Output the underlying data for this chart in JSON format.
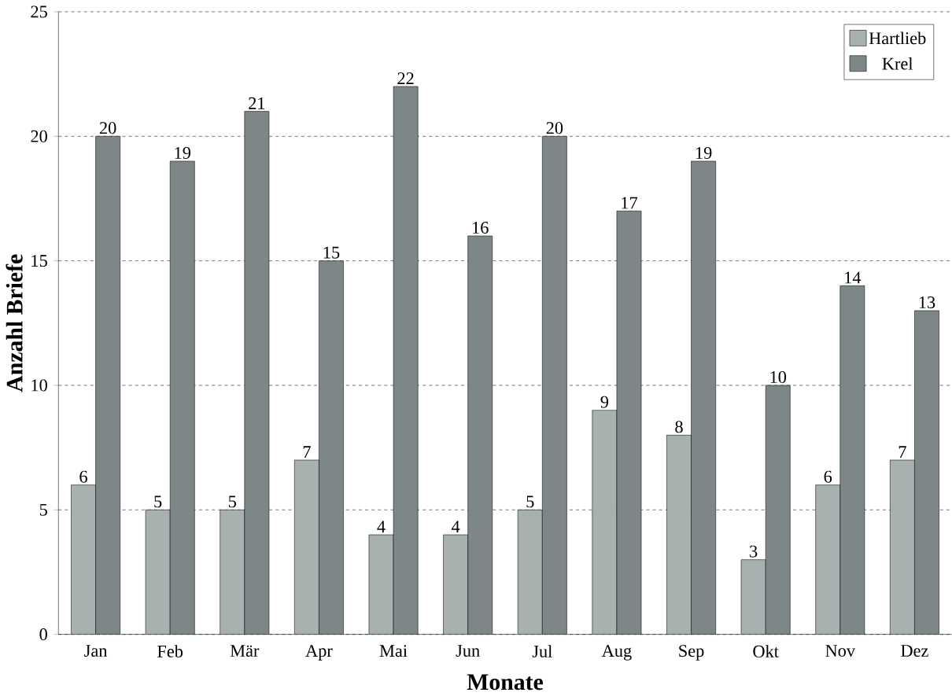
{
  "chart_data": {
    "type": "bar",
    "xlabel": "Monate",
    "ylabel": "Anzahl Briefe",
    "categories": [
      "Jan",
      "Feb",
      "Mär",
      "Apr",
      "Mai",
      "Jun",
      "Jul",
      "Aug",
      "Sep",
      "Okt",
      "Nov",
      "Dez"
    ],
    "series": [
      {
        "name": "Hartlieb",
        "color": "#a8b0b0",
        "values": [
          6,
          5,
          5,
          7,
          4,
          4,
          5,
          9,
          8,
          3,
          6,
          7
        ]
      },
      {
        "name": "Krel",
        "color": "#7d8787",
        "values": [
          20,
          19,
          21,
          15,
          22,
          16,
          20,
          17,
          19,
          10,
          14,
          13
        ]
      }
    ],
    "ylim": [
      0,
      25
    ],
    "yticks": [
      0,
      5,
      10,
      15,
      20,
      25
    ],
    "grid": "y",
    "legend": "top right",
    "data_labels": true
  }
}
